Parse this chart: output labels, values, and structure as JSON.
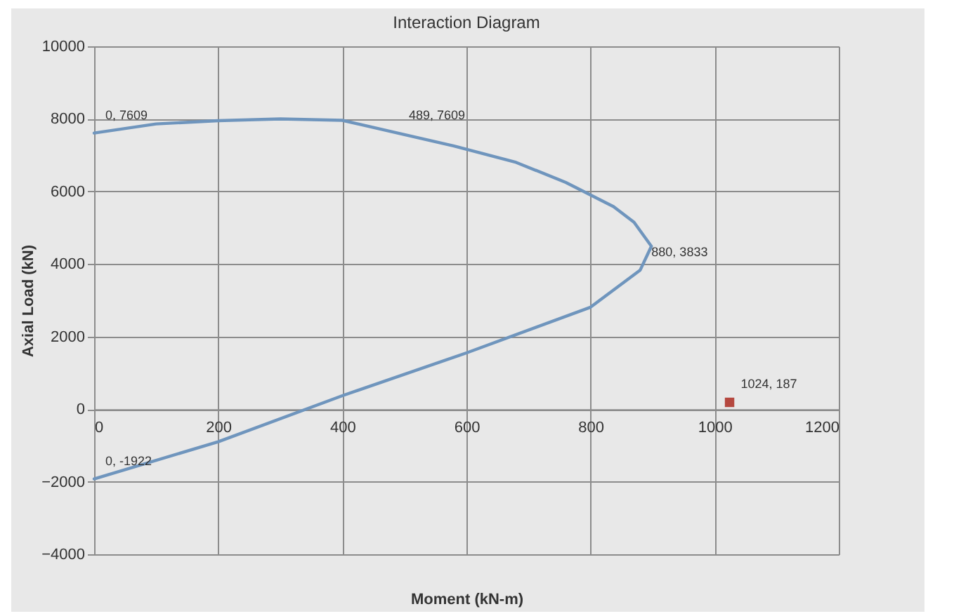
{
  "chart_data": {
    "type": "line",
    "title": "Interaction Diagram",
    "xlabel": "Moment (kN-m)",
    "ylabel": "Axial Load (kN)",
    "xlim": [
      0,
      1200
    ],
    "xticks": [
      0,
      200,
      400,
      600,
      800,
      1000,
      1200
    ],
    "ylim": [
      -4000,
      10000
    ],
    "yticks": [
      -4000,
      -2000,
      0,
      2000,
      4000,
      6000,
      8000,
      10000
    ],
    "grid": true,
    "series": [
      {
        "color": "#6f95bd",
        "x": [
          0,
          200,
          400,
          600,
          800,
          880,
          898,
          870,
          837,
          760,
          680,
          580,
          489,
          400,
          300,
          200,
          100,
          0
        ],
        "values": [
          -1922,
          -900,
          370,
          1550,
          2810,
          3833,
          4490,
          5150,
          5580,
          6250,
          6800,
          7250,
          7609,
          7960,
          8000,
          7950,
          7860,
          7609
        ]
      },
      {
        "type": "scatter",
        "color": "#b5483f",
        "marker": "square",
        "x": [
          1024
        ],
        "values": [
          187
        ]
      }
    ],
    "annotations": [
      {
        "text": "0, 7609",
        "x": 0,
        "y": 7609
      },
      {
        "text": "489, 7609",
        "x": 489,
        "y": 7609
      },
      {
        "text": "880, 3833",
        "x": 880,
        "y": 3833
      },
      {
        "text": "0, -1922",
        "x": 0,
        "y": -1922
      },
      {
        "text": "1024, 187",
        "x": 1024,
        "y": 187
      }
    ]
  }
}
